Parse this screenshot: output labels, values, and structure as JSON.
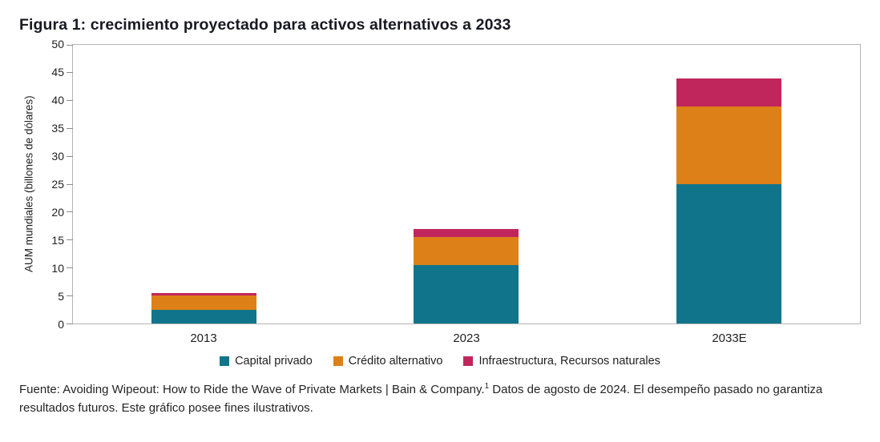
{
  "title": "Figura 1: crecimiento proyectado para activos alternativos a 2033",
  "chart_data": {
    "type": "bar",
    "stacked": true,
    "categories": [
      "2013",
      "2023",
      "2033E"
    ],
    "series": [
      {
        "name": "Capital privado",
        "color": "#10758a",
        "values": [
          2.5,
          10.5,
          25
        ]
      },
      {
        "name": "Crédito alternativo",
        "color": "#dd8018",
        "values": [
          2.5,
          5,
          14
        ]
      },
      {
        "name": "Infraestructura, Recursos naturales",
        "color": "#c0265c",
        "values": [
          0.5,
          1.5,
          5
        ]
      }
    ],
    "totals": [
      5.5,
      17,
      44
    ],
    "xlabel": "",
    "ylabel": "AUM mundiales (billones de dólares)",
    "ylim": [
      0,
      50
    ],
    "yticks": [
      0,
      5,
      10,
      15,
      20,
      25,
      30,
      35,
      40,
      45,
      50
    ],
    "grid": false,
    "legend_position": "bottom"
  },
  "footer": {
    "text_before_sup": "Fuente: Avoiding Wipeout: How to Ride the Wave of Private Markets | Bain & Company.",
    "superscript": "1",
    "text_after_sup": " Datos de agosto de 2024. El desempeño pasado no garantiza resultados futuros. Este gráfico posee fines ilustrativos."
  }
}
